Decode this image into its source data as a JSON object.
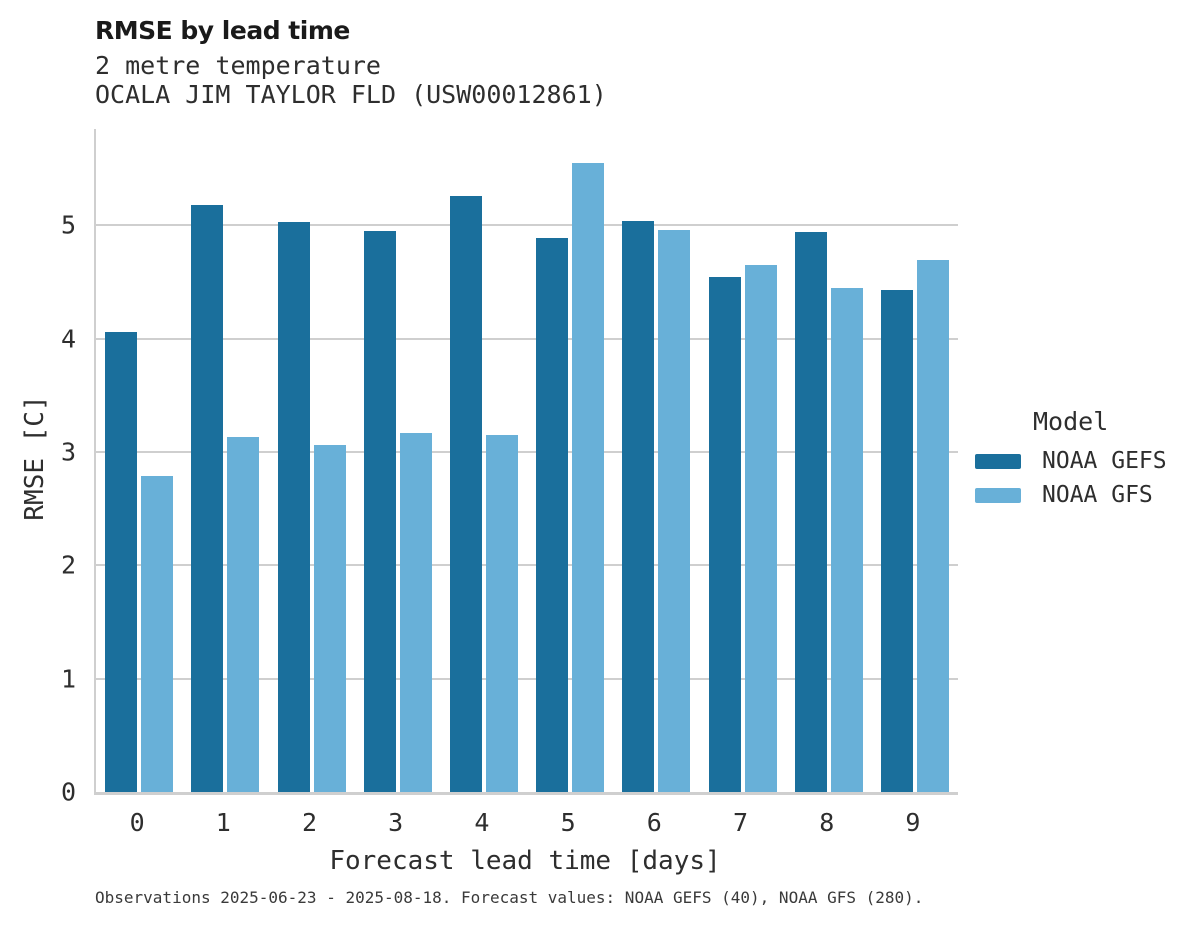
{
  "header": {
    "title": "RMSE by lead time",
    "subtitle": "2 metre temperature",
    "station": "OCALA JIM TAYLOR FLD (USW00012861)"
  },
  "legend": {
    "title": "Model",
    "items": [
      {
        "label": "NOAA GEFS",
        "color": "#1a6f9c"
      },
      {
        "label": "NOAA GFS",
        "color": "#68b0d8"
      }
    ]
  },
  "footer": {
    "text": "Observations 2025-06-23 - 2025-08-18. Forecast values: NOAA GEFS (40), NOAA GFS (280)."
  },
  "colors": {
    "gefs_dark_blue": "#1a6f9c",
    "gfs_light_blue": "#68b0d8",
    "gridline_gray": "#cfcfcf",
    "text_dark": "#2e2e2e"
  },
  "chart_data": {
    "type": "bar",
    "title": "RMSE by lead time",
    "subtitle": "2 metre temperature",
    "station": "OCALA JIM TAYLOR FLD (USW00012861)",
    "xlabel": "Forecast lead time [days]",
    "ylabel": "RMSE [C]",
    "categories": [
      "0",
      "1",
      "2",
      "3",
      "4",
      "5",
      "6",
      "7",
      "8",
      "9"
    ],
    "yticks": [
      0,
      1,
      2,
      3,
      4,
      5
    ],
    "ylim": [
      0,
      5.85
    ],
    "grid": true,
    "legend_position": "right",
    "legend_title": "Model",
    "series": [
      {
        "name": "NOAA GEFS",
        "color": "#1a6f9c",
        "values": [
          4.06,
          5.18,
          5.03,
          4.95,
          5.26,
          4.89,
          5.04,
          4.54,
          4.94,
          4.43
        ]
      },
      {
        "name": "NOAA GFS",
        "color": "#68b0d8",
        "values": [
          2.79,
          3.13,
          3.06,
          3.17,
          3.15,
          5.55,
          4.96,
          4.65,
          4.45,
          4.69
        ]
      }
    ]
  }
}
